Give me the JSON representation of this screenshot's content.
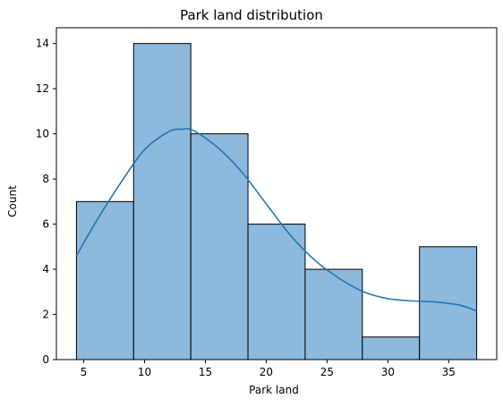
{
  "chart_data": {
    "type": "bar",
    "title": "Park land distribution",
    "xlabel": "Park land",
    "ylabel": "Count",
    "bins": [
      {
        "start": 4.4,
        "end": 9.1,
        "count": 7
      },
      {
        "start": 9.1,
        "end": 13.8,
        "count": 14
      },
      {
        "start": 13.8,
        "end": 18.5,
        "count": 10
      },
      {
        "start": 18.5,
        "end": 23.2,
        "count": 6
      },
      {
        "start": 23.2,
        "end": 27.9,
        "count": 4
      },
      {
        "start": 27.9,
        "end": 32.6,
        "count": 1
      },
      {
        "start": 32.6,
        "end": 37.3,
        "count": 5
      }
    ],
    "kde": {
      "x": [
        4.4,
        6.0,
        8.0,
        10.0,
        12.0,
        13.0,
        14.0,
        16.0,
        18.0,
        20.0,
        22.0,
        24.0,
        26.0,
        28.0,
        30.0,
        32.0,
        34.0,
        36.0,
        37.3
      ],
      "y": [
        4.6,
        6.1,
        7.8,
        9.3,
        10.1,
        10.2,
        10.15,
        9.4,
        8.3,
        6.9,
        5.5,
        4.4,
        3.6,
        3.0,
        2.7,
        2.6,
        2.55,
        2.4,
        2.15
      ]
    },
    "xticks": [
      5,
      10,
      15,
      20,
      25,
      30,
      35
    ],
    "yticks": [
      0,
      2,
      4,
      6,
      8,
      10,
      12,
      14
    ],
    "xlim": [
      2.75,
      38.95
    ],
    "ylim": [
      0,
      14.7
    ],
    "colors": {
      "bar_fill": "#8cb9dc",
      "bar_edge": "#000000",
      "kde_line": "#1f77b4"
    }
  }
}
